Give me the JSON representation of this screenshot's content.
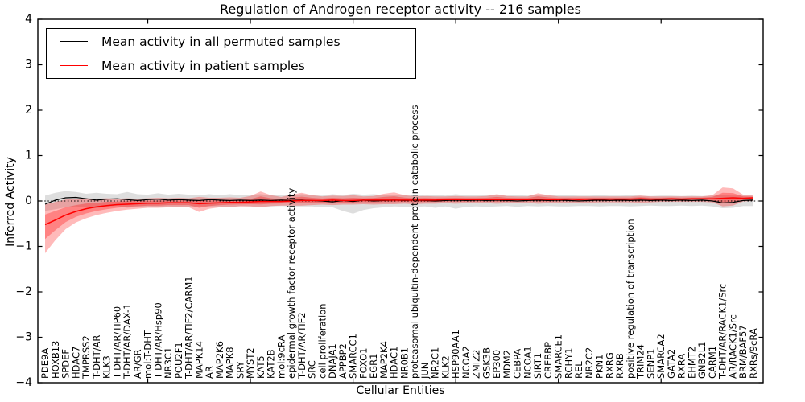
{
  "title": "Regulation of Androgen receptor activity -- 216 samples",
  "chart_data": {
    "type": "line",
    "title": "Regulation of Androgen receptor activity -- 216 samples",
    "xlabel": "Cellular Entities",
    "ylabel": "Inferred Activity",
    "ylim": [
      -4,
      4
    ],
    "yticks": [
      -4,
      -3,
      -2,
      -1,
      0,
      1,
      2,
      3,
      4
    ],
    "grid": false,
    "legend_position": "upper left",
    "zero_reference_line": true,
    "categories": [
      "PDE9A",
      "HOXB13",
      "SPDEF",
      "HDAC7",
      "TMPRSS2",
      "T-DHT/AR",
      "KLK3",
      "T-DHT/AR/TIP60",
      "T-DHT/AR/DAX-1",
      "AR/GR",
      "mol:T-DHT",
      "T-DHT/AR/Hsp90",
      "NR3C1",
      "POU2F1",
      "T-DHT/AR/TIF2/CARM1",
      "MAPK14",
      "AR",
      "MAP2K6",
      "MAPK8",
      "SRY",
      "MYST2",
      "KAT5",
      "KAT2B",
      "mol:9cRA",
      "epidermal growth factor receptor activity",
      "T-DHT/AR/TIF2",
      "SRC",
      "cell proliferation",
      "DNAJA1",
      "APPBP2",
      "SMARCC1",
      "FOXO1",
      "EGR1",
      "MAP2K4",
      "HDAC1",
      "NR0B1",
      "proteasomal ubiquitin-dependent protein catabolic process",
      "JUN",
      "NR2C1",
      "KLK2",
      "HSP90AA1",
      "NCOA2",
      "ZMIZ2",
      "GSK3B",
      "EP300",
      "MDM2",
      "CEBPA",
      "NCOA1",
      "SIRT1",
      "CREBBP",
      "SMARCE1",
      "RCHY1",
      "REL",
      "NR2C2",
      "PKN1",
      "RXRG",
      "RXRB",
      "positive regulation of transcription",
      "TRIM24",
      "SENP1",
      "SMARCA2",
      "GATA2",
      "RXRA",
      "EHMT2",
      "GNB2L1",
      "CARM1",
      "T-DHT/AR/RACK1/Src",
      "AR/RACK1/Src",
      "BRM/BAF57",
      "RXRs/9cRA"
    ],
    "series": [
      {
        "name": "Mean activity in all permuted samples",
        "color": "#000000",
        "values": [
          -0.07,
          0.02,
          0.07,
          0.08,
          0.05,
          0.02,
          0.04,
          0.05,
          0.03,
          0.01,
          0.03,
          0.04,
          0.02,
          0.03,
          0.02,
          0.01,
          0.03,
          0.02,
          0.01,
          0.02,
          0.01,
          0.02,
          0.01,
          0.02,
          0.01,
          0.02,
          0.01,
          0.0,
          -0.02,
          0.01,
          -0.01,
          0.02,
          0.0,
          0.01,
          0.02,
          0.01,
          0.02,
          0.01,
          0.0,
          0.01,
          0.02,
          0.01,
          0.02,
          0.01,
          0.02,
          0.01,
          0.0,
          0.01,
          0.02,
          0.01,
          0.02,
          0.01,
          0.0,
          0.01,
          0.02,
          0.01,
          0.02,
          0.01,
          0.02,
          0.01,
          0.02,
          0.01,
          0.02,
          0.01,
          0.02,
          0.0,
          -0.04,
          -0.03,
          0.01,
          0.02
        ]
      },
      {
        "name": "Mean activity in patient samples",
        "color": "#ff0000",
        "values": [
          -0.52,
          -0.42,
          -0.31,
          -0.23,
          -0.17,
          -0.13,
          -0.1,
          -0.08,
          -0.07,
          -0.06,
          -0.05,
          -0.05,
          -0.04,
          -0.04,
          -0.04,
          -0.06,
          -0.05,
          -0.04,
          -0.03,
          -0.03,
          -0.02,
          -0.01,
          -0.01,
          -0.01,
          0.0,
          0.01,
          0.01,
          0.01,
          0.02,
          0.01,
          0.01,
          0.02,
          0.02,
          0.02,
          0.02,
          0.02,
          0.02,
          0.02,
          0.02,
          0.03,
          0.03,
          0.03,
          0.03,
          0.03,
          0.03,
          0.03,
          0.03,
          0.03,
          0.04,
          0.03,
          0.03,
          0.04,
          0.03,
          0.04,
          0.04,
          0.04,
          0.04,
          0.04,
          0.05,
          0.04,
          0.04,
          0.05,
          0.04,
          0.05,
          0.05,
          0.05,
          0.06,
          0.07,
          0.06,
          0.07
        ]
      }
    ],
    "bands": [
      {
        "name": "permuted-samples-range",
        "color": "#999999",
        "opacity": 0.32,
        "upper": [
          0.12,
          0.18,
          0.22,
          0.2,
          0.16,
          0.18,
          0.16,
          0.15,
          0.2,
          0.15,
          0.14,
          0.17,
          0.14,
          0.16,
          0.14,
          0.13,
          0.15,
          0.13,
          0.15,
          0.13,
          0.14,
          0.15,
          0.13,
          0.14,
          0.13,
          0.15,
          0.13,
          0.12,
          0.15,
          0.13,
          0.16,
          0.14,
          0.15,
          0.13,
          0.13,
          0.14,
          0.14,
          0.12,
          0.14,
          0.12,
          0.15,
          0.13,
          0.13,
          0.14,
          0.13,
          0.12,
          0.13,
          0.12,
          0.14,
          0.12,
          0.13,
          0.13,
          0.12,
          0.12,
          0.13,
          0.12,
          0.12,
          0.13,
          0.12,
          0.11,
          0.12,
          0.12,
          0.11,
          0.12,
          0.11,
          0.12,
          0.13,
          0.12,
          0.12,
          0.12
        ],
        "lower": [
          -0.22,
          -0.18,
          -0.14,
          -0.12,
          -0.14,
          -0.16,
          -0.12,
          -0.11,
          -0.15,
          -0.13,
          -0.12,
          -0.13,
          -0.12,
          -0.13,
          -0.13,
          -0.12,
          -0.12,
          -0.12,
          -0.14,
          -0.11,
          -0.12,
          -0.13,
          -0.12,
          -0.11,
          -0.12,
          -0.12,
          -0.12,
          -0.14,
          -0.14,
          -0.22,
          -0.28,
          -0.2,
          -0.16,
          -0.14,
          -0.12,
          -0.13,
          -0.13,
          -0.12,
          -0.15,
          -0.12,
          -0.17,
          -0.13,
          -0.12,
          -0.13,
          -0.12,
          -0.11,
          -0.13,
          -0.11,
          -0.12,
          -0.11,
          -0.12,
          -0.12,
          -0.11,
          -0.11,
          -0.12,
          -0.11,
          -0.11,
          -0.12,
          -0.11,
          -0.1,
          -0.11,
          -0.11,
          -0.1,
          -0.11,
          -0.1,
          -0.12,
          -0.16,
          -0.15,
          -0.11,
          -0.11
        ]
      },
      {
        "name": "patient-samples-range",
        "color": "#ff0000",
        "opacity": 0.27,
        "core_series": 1,
        "upper": [
          -0.08,
          -0.02,
          0.03,
          0.05,
          0.06,
          0.05,
          0.06,
          0.05,
          0.06,
          0.05,
          0.06,
          0.07,
          0.06,
          0.07,
          0.06,
          0.09,
          0.07,
          0.07,
          0.08,
          0.07,
          0.11,
          0.21,
          0.13,
          0.09,
          0.14,
          0.18,
          0.13,
          0.1,
          0.12,
          0.11,
          0.13,
          0.1,
          0.11,
          0.16,
          0.19,
          0.13,
          0.1,
          0.11,
          0.1,
          0.1,
          0.11,
          0.1,
          0.1,
          0.11,
          0.15,
          0.11,
          0.1,
          0.1,
          0.17,
          0.13,
          0.1,
          0.1,
          0.1,
          0.1,
          0.1,
          0.1,
          0.1,
          0.1,
          0.12,
          0.1,
          0.1,
          0.1,
          0.1,
          0.1,
          0.1,
          0.13,
          0.3,
          0.28,
          0.14,
          0.12
        ],
        "lower": [
          -1.15,
          -0.86,
          -0.62,
          -0.47,
          -0.38,
          -0.31,
          -0.26,
          -0.22,
          -0.19,
          -0.17,
          -0.15,
          -0.15,
          -0.14,
          -0.14,
          -0.14,
          -0.24,
          -0.17,
          -0.14,
          -0.13,
          -0.12,
          -0.12,
          -0.14,
          -0.11,
          -0.1,
          -0.1,
          -0.1,
          -0.09,
          -0.08,
          -0.09,
          -0.08,
          -0.08,
          -0.07,
          -0.08,
          -0.07,
          -0.07,
          -0.06,
          -0.07,
          -0.06,
          -0.06,
          -0.05,
          -0.06,
          -0.05,
          -0.05,
          -0.05,
          -0.06,
          -0.05,
          -0.05,
          -0.04,
          -0.06,
          -0.05,
          -0.04,
          -0.04,
          -0.04,
          -0.04,
          -0.03,
          -0.03,
          -0.03,
          -0.03,
          -0.04,
          -0.03,
          -0.02,
          -0.02,
          -0.02,
          -0.02,
          -0.02,
          -0.03,
          -0.12,
          -0.1,
          -0.01,
          0.0
        ]
      }
    ]
  }
}
